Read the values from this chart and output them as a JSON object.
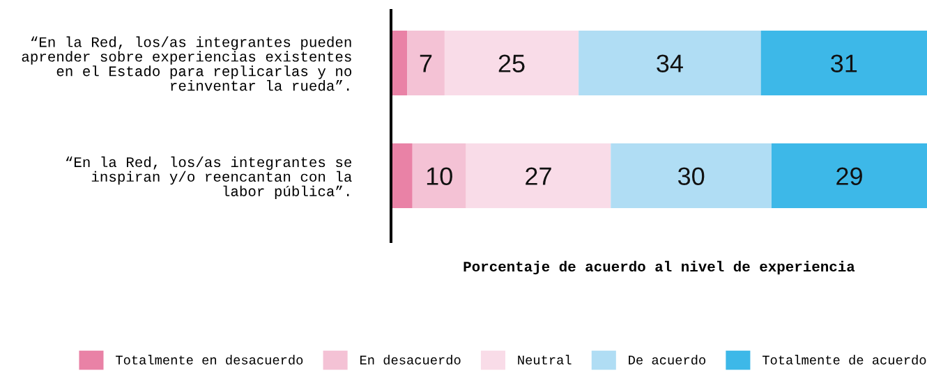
{
  "chart_data": {
    "type": "bar",
    "orientation": "horizontal",
    "stacked": true,
    "categories": [
      "“En la Red, los/as integrantes pueden\naprender sobre experiencias existentes\nen el Estado para replicarlas y no\nreinventar la rueda”.",
      "“En la Red, los/as integrantes se\ninspiran y/o reencantan con la\nlabor pública”."
    ],
    "series": [
      {
        "name": "Totalmente en desacuerdo",
        "color": "#e982a6",
        "values": [
          3,
          4
        ],
        "value_labels": [
          null,
          null
        ]
      },
      {
        "name": "En desacuerdo",
        "color": "#f4c2d5",
        "values": [
          7,
          10
        ],
        "value_labels": [
          "7",
          "10"
        ]
      },
      {
        "name": "Neutral",
        "color": "#f9dce8",
        "values": [
          25,
          27
        ],
        "value_labels": [
          "25",
          "27"
        ]
      },
      {
        "name": "De acuerdo",
        "color": "#b0ddf4",
        "values": [
          34,
          30
        ],
        "value_labels": [
          "34",
          "30"
        ]
      },
      {
        "name": "Totalmente de acuerdo",
        "color": "#3db8e8",
        "values": [
          31,
          29
        ],
        "value_labels": [
          "31",
          "29"
        ]
      }
    ],
    "xlabel": "Porcentaje de acuerdo al nivel de experiencia",
    "xlim": [
      0,
      100
    ],
    "tick_labels": "y",
    "legend": "bottom"
  }
}
